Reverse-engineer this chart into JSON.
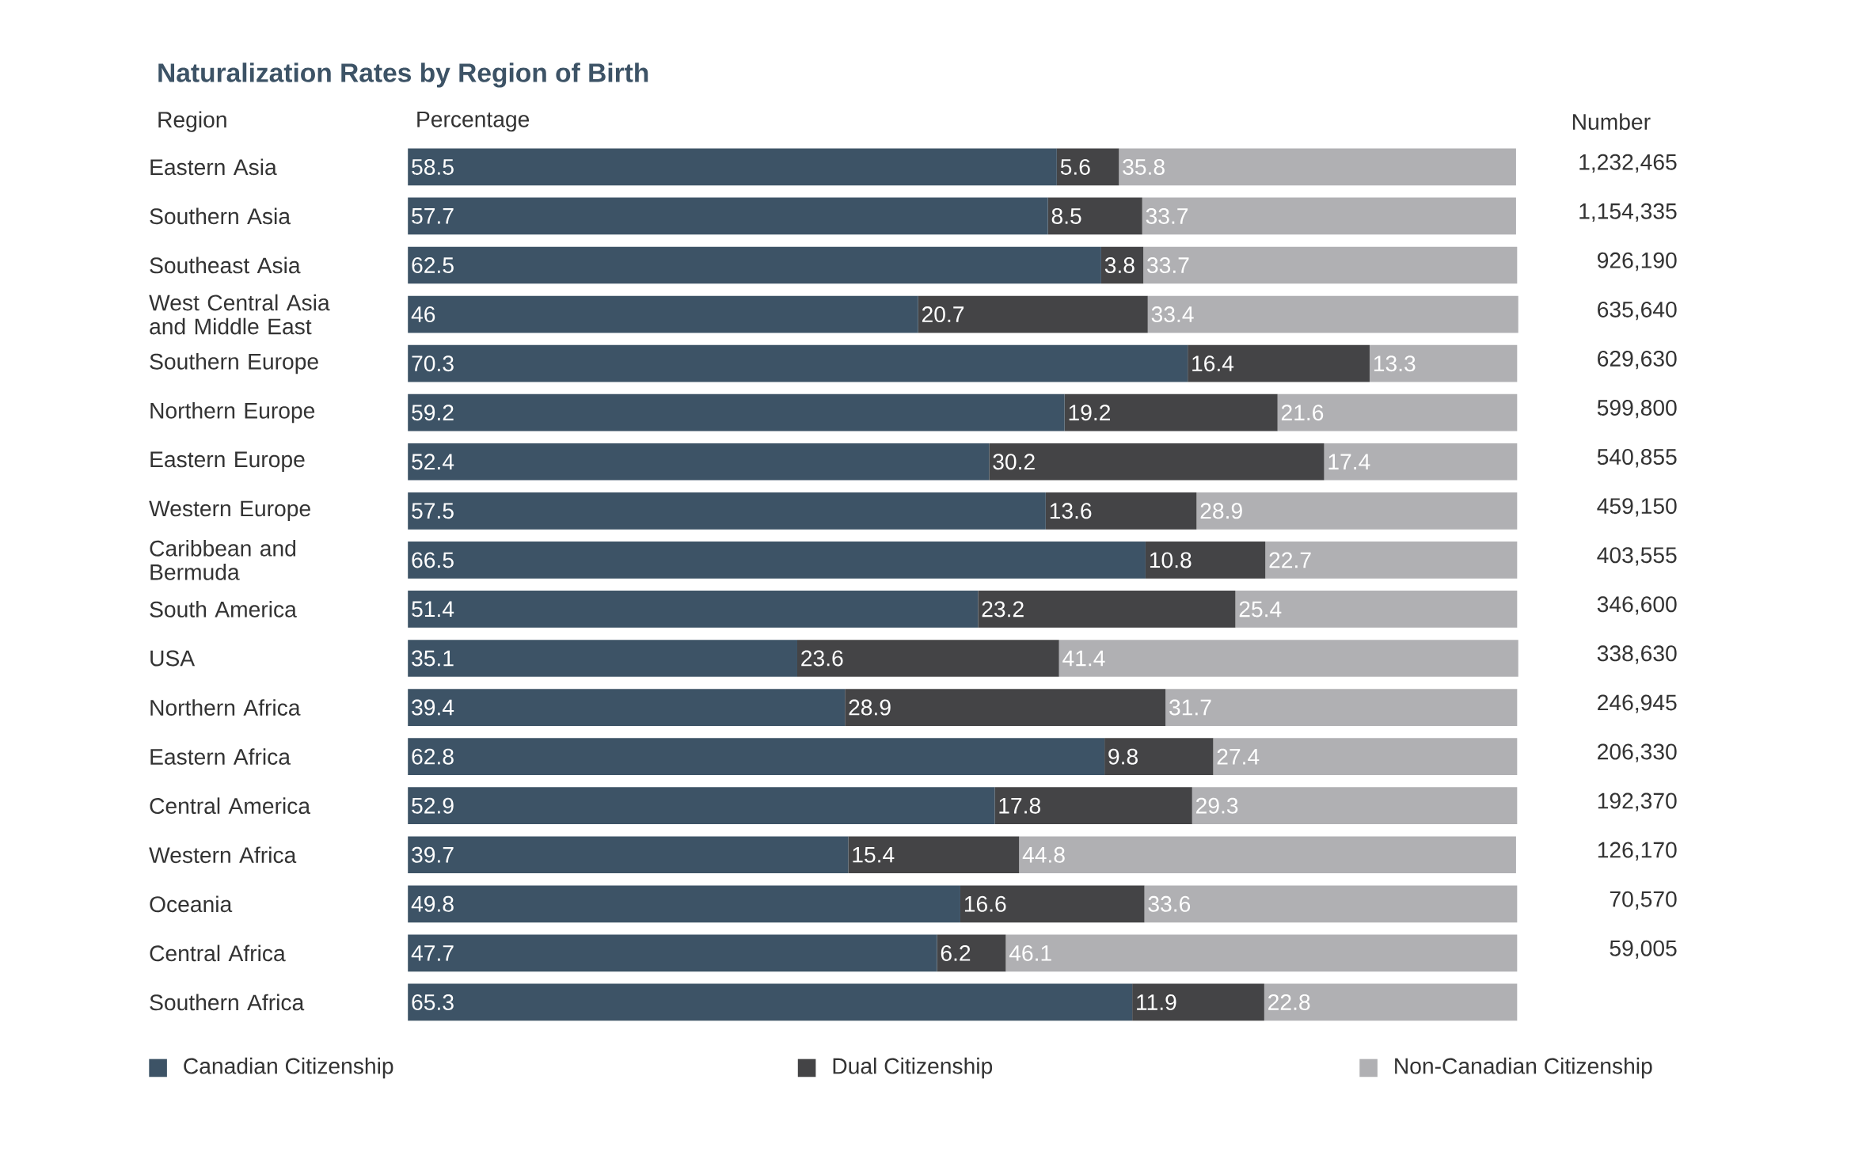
{
  "chart_data": {
    "type": "bar",
    "orientation": "horizontal",
    "stacked": true,
    "data_labels": true,
    "legend": "bottom",
    "title": "Naturalization Rates by Region of Birth",
    "categories": [
      "Eastern Asia",
      "Southern Asia",
      "Southeast Asia",
      "West Central Asia and Middle East",
      "Southern Europe",
      "Northern Europe",
      "Eastern Europe",
      "Western Europe",
      "Caribbean and Bermuda",
      "South America",
      "USA",
      "Northern Africa",
      "Eastern Africa",
      "Central America",
      "Western Africa",
      "Oceania",
      "Central Africa",
      "Southern Africa"
    ],
    "series": [
      {
        "name": "Canadian Citizenship",
        "color": "#3d5366",
        "values": [
          58.5,
          57.7,
          62.5,
          46,
          70.3,
          59.2,
          52.4,
          57.5,
          66.5,
          51.4,
          35.1,
          39.4,
          62.8,
          52.9,
          39.7,
          49.8,
          47.7,
          65.3
        ]
      },
      {
        "name": "Dual Citizenship",
        "color": "#444446",
        "values": [
          5.6,
          8.5,
          3.8,
          20.7,
          16.4,
          19.2,
          30.2,
          13.6,
          10.8,
          23.2,
          23.6,
          28.9,
          9.8,
          17.8,
          15.4,
          16.6,
          6.2,
          11.9
        ]
      },
      {
        "name": "Non-Canadian Citizenship",
        "color": "#b0b0b3",
        "values": [
          35.8,
          33.7,
          33.7,
          33.4,
          13.3,
          21.6,
          17.4,
          28.9,
          22.7,
          25.4,
          41.4,
          31.7,
          27.4,
          29.3,
          44.8,
          33.6,
          46.1,
          22.8
        ]
      }
    ],
    "annotations": [
      "Region",
      "Percentage",
      "Number",
      "1,232,465",
      "1,154,335",
      "926,190",
      "635,640",
      "629,630",
      "599,800",
      "540,855",
      "459,150",
      "403,555",
      "346,600",
      "338,630",
      "246,945",
      "206,330",
      "192,370",
      "126,170",
      "70,570",
      "59,005"
    ]
  }
}
